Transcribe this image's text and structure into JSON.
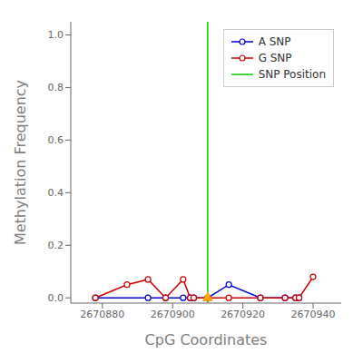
{
  "chart_data": {
    "type": "line",
    "title": "",
    "xlabel": "CpG Coordinates",
    "ylabel": "Methylation Frequency",
    "xlim": [
      2670871,
      2670948
    ],
    "ylim": [
      -0.02,
      1.05
    ],
    "xticks": [
      2670880,
      2670900,
      2670920,
      2670940
    ],
    "yticks": [
      {
        "value": 0.0,
        "label": "0.0"
      },
      0.2,
      0.4,
      0.6,
      0.8,
      {
        "value": 1.0,
        "label": "1.0"
      }
    ],
    "grid": false,
    "legend": "upper right",
    "series": [
      {
        "name": "A SNP",
        "type": "line",
        "color": "#0000cc",
        "marker": "circle",
        "line_style": "solid",
        "x": [
          2670878,
          2670893,
          2670898,
          2670903,
          2670905,
          2670906,
          2670910,
          2670916,
          2670925,
          2670932,
          2670935,
          2670936
        ],
        "values": [
          0.0,
          0.0,
          0.0,
          0.0,
          0.0,
          0.0,
          0.0,
          0.05,
          0.0,
          0.0,
          0.0,
          0.0
        ]
      },
      {
        "name": "G SNP",
        "type": "line",
        "color": "#cc0000",
        "marker": "circle",
        "line_style": "solid",
        "x": [
          2670878,
          2670887,
          2670893,
          2670898,
          2670903,
          2670905,
          2670906,
          2670910,
          2670916,
          2670925,
          2670932,
          2670935,
          2670936,
          2670940
        ],
        "values": [
          0.0,
          0.05,
          0.07,
          0.0,
          0.07,
          0.0,
          0.0,
          0.0,
          0.0,
          0.0,
          0.0,
          0.0,
          0.0,
          0.08
        ]
      },
      {
        "name": "SNP Position",
        "type": "vline",
        "color": "#00cc00",
        "line_style": "solid",
        "x": [
          2670910
        ]
      },
      {
        "type": "scatter",
        "color": "#ffa500",
        "marker": "triangle",
        "line_style": "none",
        "x": [
          2670910
        ],
        "values": [
          0.0
        ]
      }
    ]
  }
}
